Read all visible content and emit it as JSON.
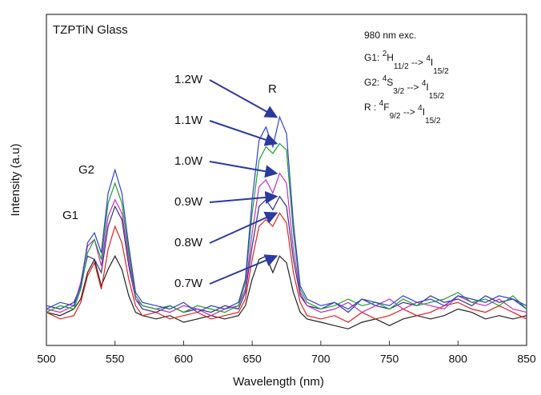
{
  "chart_data": {
    "type": "line",
    "x_label": "Wavelength (nm)",
    "y_label": "Intensity (a.u)",
    "xlim": [
      500,
      850
    ],
    "xticks": [
      500,
      550,
      600,
      650,
      700,
      750,
      800,
      850
    ],
    "ylim": [
      0,
      10
    ],
    "x": [
      500,
      510,
      520,
      525,
      530,
      535,
      540,
      545,
      550,
      555,
      560,
      565,
      570,
      580,
      590,
      600,
      610,
      620,
      630,
      640,
      645,
      650,
      655,
      660,
      665,
      670,
      675,
      680,
      685,
      690,
      700,
      710,
      720,
      730,
      740,
      750,
      760,
      770,
      780,
      790,
      800,
      810,
      820,
      830,
      840,
      850
    ],
    "series": [
      {
        "name": "0.7W",
        "color": "#222222",
        "values": [
          1.0,
          0.9,
          1.1,
          1.4,
          2.2,
          2.6,
          1.8,
          2.3,
          2.7,
          2.3,
          1.5,
          1.0,
          0.9,
          0.8,
          0.9,
          0.7,
          0.8,
          0.9,
          0.8,
          0.9,
          1.2,
          2.0,
          2.6,
          2.7,
          2.2,
          2.7,
          2.5,
          1.6,
          1.0,
          0.8,
          0.7,
          0.6,
          0.5,
          0.7,
          0.8,
          0.6,
          0.8,
          0.9,
          0.8,
          0.9,
          1.1,
          1.0,
          0.8,
          0.9,
          0.8,
          0.9
        ]
      },
      {
        "name": "0.8W",
        "color": "#e02020",
        "values": [
          1.0,
          0.8,
          0.9,
          1.3,
          2.1,
          2.5,
          1.7,
          2.9,
          3.6,
          3.1,
          2.0,
          1.2,
          0.9,
          1.0,
          0.8,
          0.9,
          1.0,
          0.8,
          0.9,
          1.0,
          1.4,
          2.6,
          3.6,
          3.8,
          3.6,
          4.0,
          3.7,
          2.2,
          1.3,
          0.9,
          0.8,
          0.9,
          0.7,
          1.0,
          0.8,
          0.9,
          1.1,
          0.9,
          1.0,
          1.2,
          1.3,
          1.1,
          1.0,
          1.2,
          1.0,
          0.8
        ]
      },
      {
        "name": "0.9W",
        "color": "#303090",
        "values": [
          1.2,
          1.1,
          1.3,
          1.8,
          2.7,
          2.6,
          2.2,
          3.6,
          4.2,
          3.8,
          2.4,
          1.4,
          1.1,
          1.0,
          1.2,
          1.0,
          1.1,
          1.0,
          1.2,
          1.1,
          1.6,
          3.0,
          4.2,
          4.4,
          4.1,
          4.5,
          4.2,
          2.6,
          1.5,
          1.2,
          1.1,
          1.3,
          1.0,
          1.4,
          1.2,
          1.1,
          1.3,
          1.2,
          1.5,
          1.3,
          1.4,
          1.2,
          1.5,
          1.3,
          1.4,
          1.1
        ]
      },
      {
        "name": "1.0W",
        "color": "#c030c0",
        "values": [
          1.1,
          1.0,
          1.2,
          1.9,
          3.0,
          3.2,
          2.4,
          3.9,
          4.4,
          4.0,
          2.6,
          1.4,
          1.2,
          1.1,
          1.0,
          1.2,
          1.1,
          0.9,
          1.1,
          1.2,
          1.7,
          3.4,
          4.8,
          5.0,
          4.6,
          5.2,
          4.9,
          2.9,
          1.6,
          1.2,
          1.0,
          1.1,
          1.3,
          1.0,
          1.2,
          1.4,
          1.1,
          1.3,
          1.2,
          1.1,
          1.5,
          1.3,
          1.2,
          1.4,
          1.1,
          1.0
        ]
      },
      {
        "name": "1.1W",
        "color": "#20a030",
        "values": [
          1.0,
          1.2,
          1.1,
          1.7,
          2.8,
          3.2,
          2.6,
          4.3,
          4.9,
          4.3,
          2.8,
          1.5,
          1.2,
          1.1,
          1.2,
          1.0,
          1.2,
          1.1,
          1.0,
          1.2,
          1.9,
          4.0,
          5.6,
          6.0,
          5.8,
          6.1,
          5.9,
          3.4,
          1.7,
          1.3,
          1.1,
          1.2,
          1.4,
          1.2,
          1.3,
          1.1,
          1.4,
          1.2,
          1.3,
          1.4,
          1.6,
          1.3,
          1.4,
          1.2,
          1.5,
          1.1
        ]
      },
      {
        "name": "1.2W",
        "color": "#3040d0",
        "values": [
          1.1,
          1.3,
          1.2,
          1.8,
          3.1,
          3.4,
          2.8,
          4.6,
          5.3,
          4.6,
          3.0,
          1.6,
          1.3,
          1.2,
          1.1,
          1.3,
          1.0,
          1.2,
          1.1,
          1.3,
          2.0,
          4.4,
          6.2,
          6.6,
          6.0,
          6.9,
          6.4,
          3.7,
          1.8,
          1.4,
          1.2,
          1.3,
          1.1,
          1.4,
          1.3,
          1.2,
          1.5,
          1.3,
          1.4,
          1.2,
          1.5,
          1.4,
          1.3,
          1.5,
          1.4,
          1.2
        ]
      }
    ],
    "annotations": {
      "sample": "TZPTiN Glass",
      "g1": "G1",
      "g2": "G2",
      "r": "R",
      "excitation": "980 nm exc.",
      "transitions": [
        [
          "G1: ",
          "2",
          "H",
          "11/2",
          " --> ",
          "4",
          "I",
          "15/2"
        ],
        [
          "G2:  ",
          "4",
          "S",
          "3/2",
          " --> ",
          "4",
          "I",
          "15/2"
        ],
        [
          "R  :  ",
          "4",
          "F",
          "9/2",
          " --> ",
          "4",
          "I",
          "15/2"
        ]
      ]
    }
  }
}
